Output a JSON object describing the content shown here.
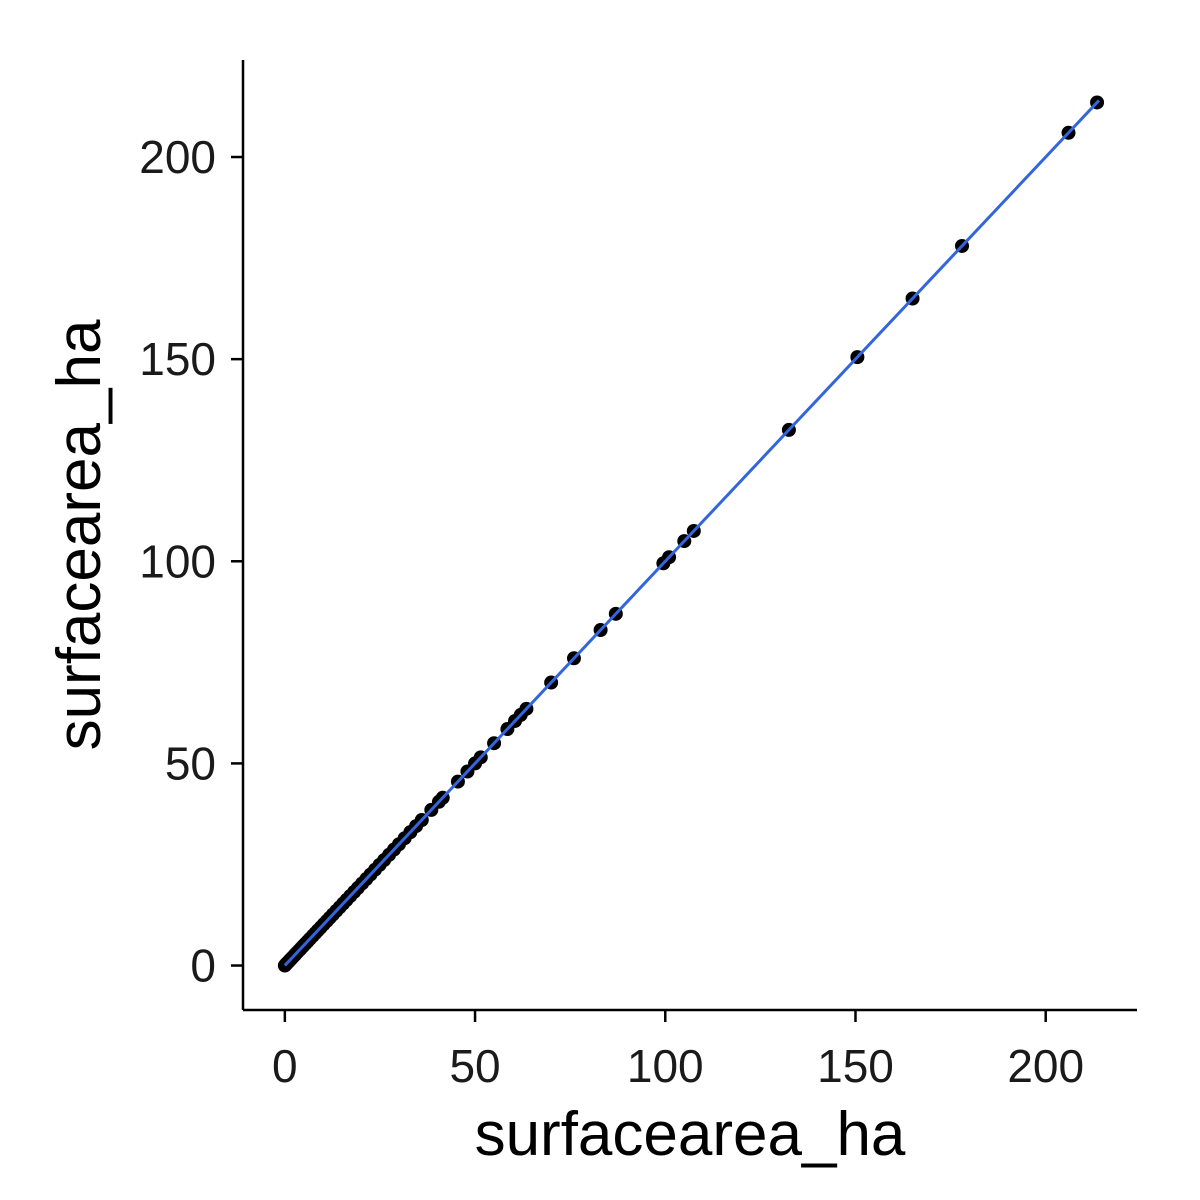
{
  "chart_data": {
    "type": "scatter",
    "title": "",
    "xlabel": "surfacearea_ha",
    "ylabel": "surfacearea_ha",
    "xlim": [
      -11,
      224
    ],
    "ylim": [
      -11,
      224
    ],
    "x_ticks": [
      0,
      50,
      100,
      150,
      200
    ],
    "y_ticks": [
      0,
      50,
      100,
      150,
      200
    ],
    "x_tick_labels": [
      "0",
      "50",
      "100",
      "150",
      "200"
    ],
    "y_tick_labels": [
      "0",
      "50",
      "100",
      "150",
      "200"
    ],
    "grid": false,
    "legend": "none",
    "point_color": "#000000",
    "fit_line": {
      "from": 0,
      "to": 214,
      "color": "#3366dd"
    },
    "x": [
      0,
      0.3,
      0.6,
      1,
      1.4,
      1.8,
      2.2,
      2.7,
      3.2,
      3.7,
      4.2,
      4.8,
      5.4,
      6,
      6.6,
      7.3,
      8,
      8.7,
      9.4,
      10.2,
      11,
      11.8,
      12.6,
      13.5,
      14.4,
      15.3,
      16.2,
      17.2,
      18.2,
      19.2,
      20.3,
      21.4,
      22.5,
      23.7,
      24.9,
      26.1,
      27.4,
      28.7,
      30,
      31.5,
      33,
      34.5,
      36,
      38.5,
      40.5,
      41.5,
      45.5,
      48,
      50,
      51.5,
      55,
      58.5,
      60.5,
      62,
      63.5,
      70,
      76,
      83,
      87,
      99.5,
      101,
      105,
      107.5,
      132.5,
      150.5,
      165,
      178,
      206,
      213.5
    ],
    "y": [
      0,
      0.3,
      0.6,
      1,
      1.4,
      1.8,
      2.2,
      2.7,
      3.2,
      3.7,
      4.2,
      4.8,
      5.4,
      6,
      6.6,
      7.3,
      8,
      8.7,
      9.4,
      10.2,
      11,
      11.8,
      12.6,
      13.5,
      14.4,
      15.3,
      16.2,
      17.2,
      18.2,
      19.2,
      20.3,
      21.4,
      22.5,
      23.7,
      24.9,
      26.1,
      27.4,
      28.7,
      30,
      31.5,
      33,
      34.5,
      36,
      38.5,
      40.5,
      41.5,
      45.5,
      48,
      50,
      51.5,
      55,
      58.5,
      60.5,
      62,
      63.5,
      70,
      76,
      83,
      87,
      99.5,
      101,
      105,
      107.5,
      132.5,
      150.5,
      165,
      178,
      206,
      213.5
    ]
  }
}
